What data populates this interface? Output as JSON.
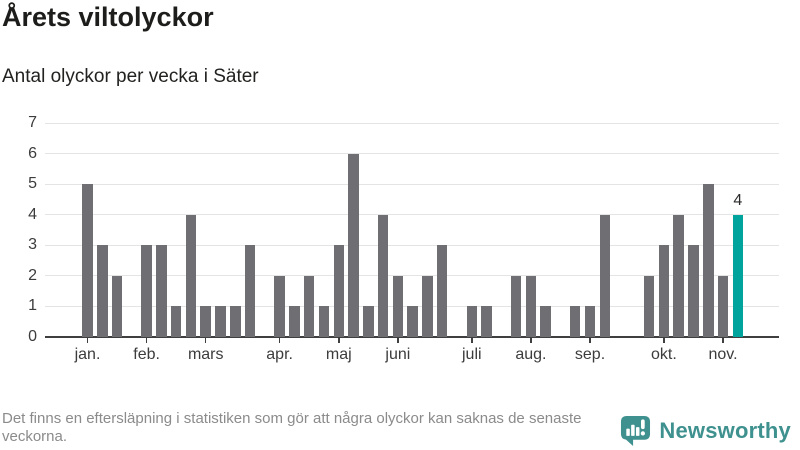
{
  "header": {
    "title": "Årets viltolyckor",
    "subtitle": "Antal olyckor per vecka i Säter"
  },
  "chart_data": {
    "type": "bar",
    "title": "Årets viltolyckor",
    "subtitle": "Antal olyckor per vecka i Säter",
    "x_unit": "vecka",
    "values": [
      5,
      3,
      2,
      0,
      3,
      3,
      1,
      4,
      1,
      1,
      1,
      3,
      0,
      2,
      1,
      2,
      1,
      3,
      6,
      1,
      4,
      2,
      1,
      2,
      3,
      0,
      1,
      1,
      0,
      2,
      2,
      1,
      0,
      1,
      1,
      4,
      0,
      0,
      2,
      3,
      4,
      3,
      5,
      2,
      4
    ],
    "highlight_last_bar": true,
    "last_value_label": "4",
    "ylim": [
      0,
      7
    ],
    "yticks": [
      0,
      1,
      2,
      3,
      4,
      5,
      6,
      7
    ],
    "grid": "horizontal",
    "legend": "none",
    "bar_color": "#6e6e73",
    "highlight_color": "#00a49d",
    "months": [
      {
        "label": "jan.",
        "week": 1
      },
      {
        "label": "feb.",
        "week": 5
      },
      {
        "label": "mars",
        "week": 9
      },
      {
        "label": "apr.",
        "week": 14
      },
      {
        "label": "maj",
        "week": 18
      },
      {
        "label": "juni",
        "week": 22
      },
      {
        "label": "juli",
        "week": 27
      },
      {
        "label": "aug.",
        "week": 31
      },
      {
        "label": "sep.",
        "week": 35
      },
      {
        "label": "okt.",
        "week": 40
      },
      {
        "label": "nov.",
        "week": 44
      }
    ]
  },
  "footer": {
    "disclaimer": "Det finns en eftersläpning i statistiken som gör att några olyckor kan saknas de senaste veckorna.",
    "brand_name": "Newsworthy"
  },
  "colors": {
    "bar": "#6e6e73",
    "highlight": "#00a49d",
    "brand_teal": "#3e918e",
    "gridline": "#e4e4e4",
    "axis": "#3f3f3f",
    "muted_text": "#8b8b8b",
    "dark_text": "#1d1d1b"
  }
}
